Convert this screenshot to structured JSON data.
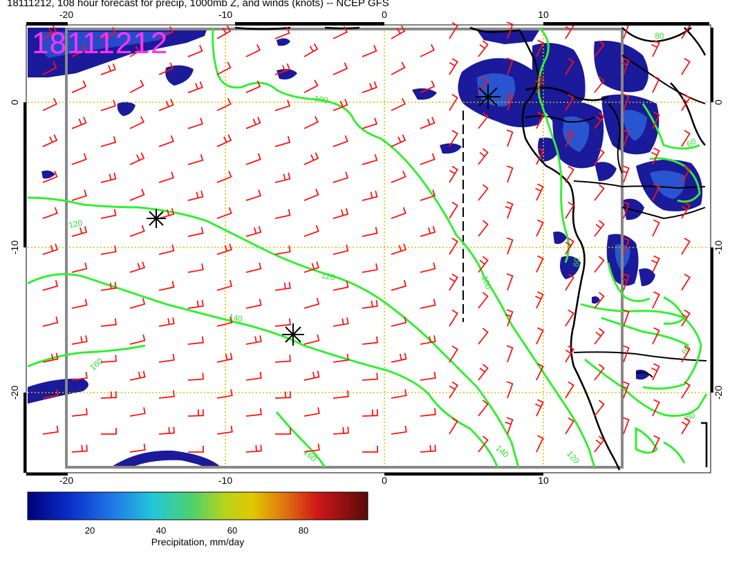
{
  "title": "18111212, 108 hour forecast for precip, 1000mb Z, and winds (knots) -- NCEP GFS",
  "stamp": "18111212",
  "axes": {
    "x_ticks_top": [
      "-20",
      "-10",
      "0",
      "10"
    ],
    "x_ticks_bottom": [
      "-20",
      "-10",
      "0",
      "10"
    ],
    "y_ticks_left": [
      "0",
      "-10",
      "-20"
    ],
    "y_ticks_right": [
      "0",
      "-10",
      "-20"
    ]
  },
  "contour_labels": [
    "100",
    "120",
    "120",
    "140",
    "160",
    "160",
    "100",
    "140",
    "120",
    "60",
    "80",
    "60",
    "60",
    "80"
  ],
  "colorbar": {
    "ticks": [
      "20",
      "40",
      "60",
      "80"
    ],
    "label": "Precipitation, mm/day"
  },
  "colors": {
    "contour": "#33ee33",
    "barb": "#ff1111",
    "precip_dark": "#1a1a9a",
    "precip_mid": "#2a55d0",
    "stamp": "#ff33ff",
    "grid": "#d4c400"
  }
}
